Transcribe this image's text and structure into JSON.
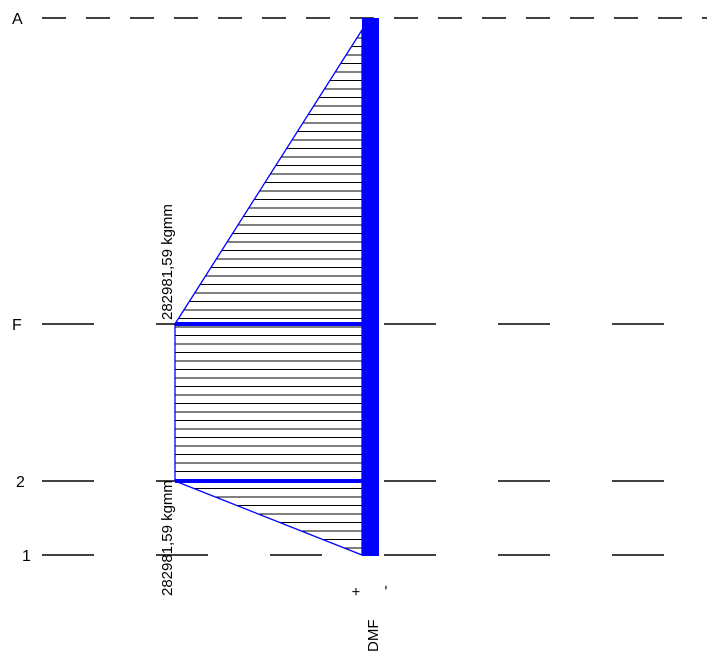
{
  "diagram": {
    "type": "bending-moment-diagram",
    "stations": [
      {
        "name": "A",
        "label": "A"
      },
      {
        "name": "F",
        "label": "F"
      },
      {
        "name": "2",
        "label": "2"
      },
      {
        "name": "1",
        "label": "1"
      }
    ],
    "moment_labels": {
      "upper": "282981,59 kgmm",
      "lower": "282981,59 kgmm"
    },
    "axis": {
      "title": "DMF",
      "plus": "+",
      "minus": "-"
    },
    "colors": {
      "diagram": "#0000ff",
      "lines": "#000000",
      "background": "#ffffff"
    }
  }
}
